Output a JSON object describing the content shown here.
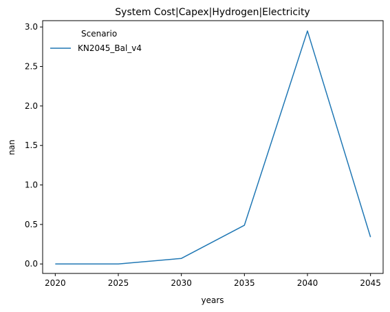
{
  "chart_data": {
    "type": "line",
    "title": "System Cost|Capex|Hydrogen|Electricity",
    "xlabel": "years",
    "ylabel": "nan",
    "x": [
      2020,
      2025,
      2030,
      2035,
      2040,
      2045
    ],
    "xticks": [
      "2020",
      "2025",
      "2030",
      "2035",
      "2040",
      "2045"
    ],
    "yticks": [
      "0.0",
      "0.5",
      "1.0",
      "1.5",
      "2.0",
      "2.5",
      "3.0"
    ],
    "ylim": [
      -0.12,
      3.08
    ],
    "xlim": [
      2019,
      2046
    ],
    "grid": false,
    "legend": {
      "title": "Scenario",
      "placement": "top-left"
    },
    "series": [
      {
        "name": "KN2045_Bal_v4",
        "color": "#1f77b4",
        "values": [
          0.0,
          0.0,
          0.07,
          0.49,
          2.95,
          0.34
        ]
      }
    ]
  }
}
